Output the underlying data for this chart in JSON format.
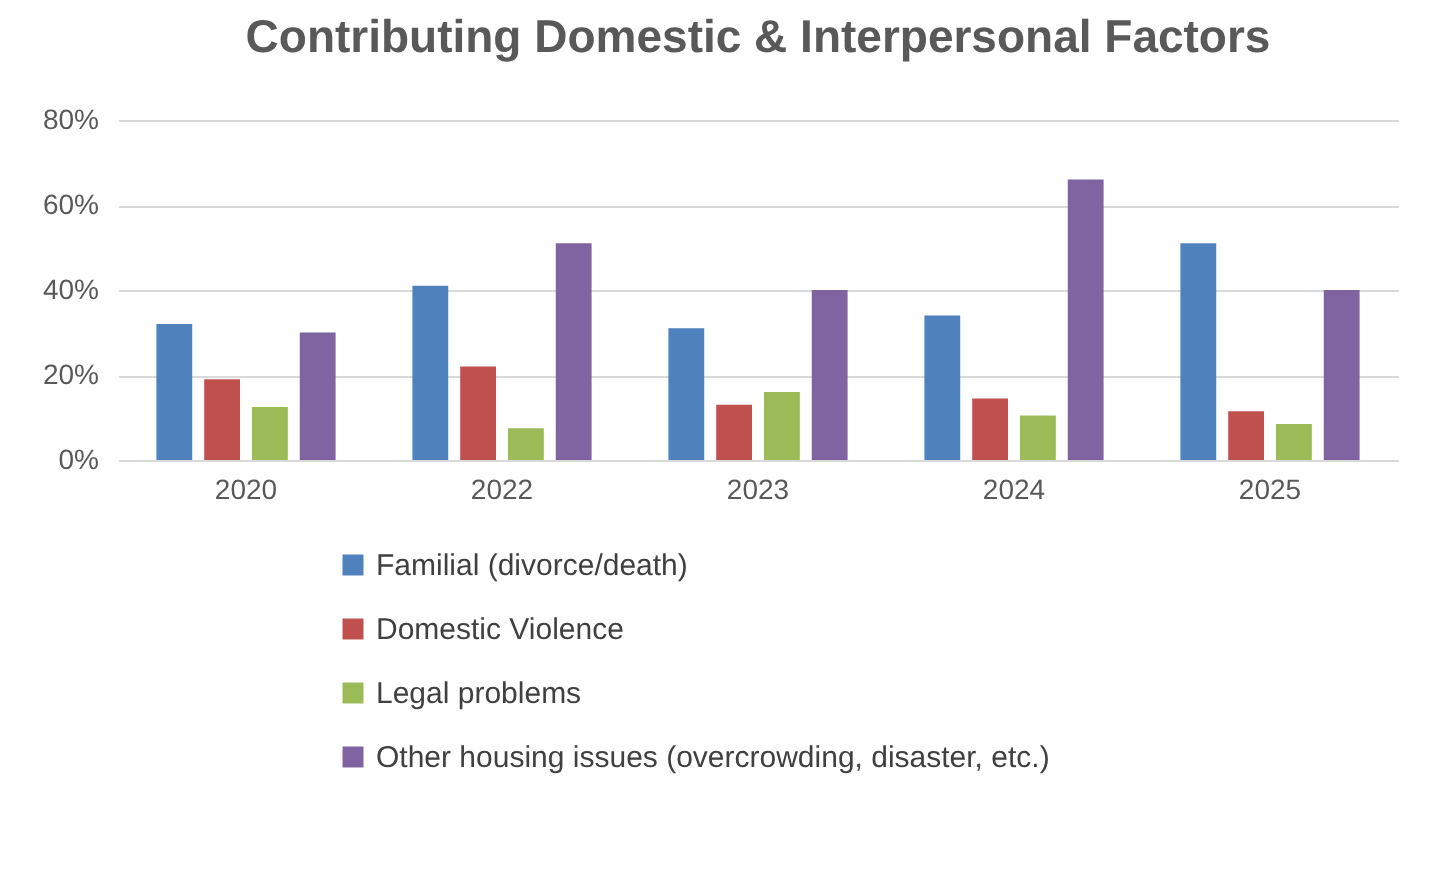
{
  "chart_data": {
    "type": "bar",
    "title": "Contributing Domestic & Interpersonal Factors",
    "categories": [
      "2020",
      "2022",
      "2023",
      "2024",
      "2025"
    ],
    "series": [
      {
        "name": "Familial (divorce/death)",
        "color": "#4f81bd",
        "values": [
          32,
          41,
          31,
          34,
          51
        ]
      },
      {
        "name": "Domestic Violence",
        "color": "#c0504d",
        "values": [
          19,
          22,
          13,
          14.5,
          11.5
        ]
      },
      {
        "name": "Legal problems",
        "color": "#9bbb59",
        "values": [
          12.5,
          7.5,
          16,
          10.5,
          8.5
        ]
      },
      {
        "name": "Other housing issues (overcrowding, disaster, etc.)",
        "color": "#8064a2",
        "values": [
          30,
          51,
          40,
          66,
          40
        ]
      }
    ],
    "ylim": [
      0,
      80
    ],
    "yticks": [
      {
        "value": 0,
        "label": "0%"
      },
      {
        "value": 20,
        "label": "20%"
      },
      {
        "value": 40,
        "label": "40%"
      },
      {
        "value": 60,
        "label": "60%"
      },
      {
        "value": 80,
        "label": "80%"
      }
    ],
    "grid": true,
    "legend": "bottom"
  }
}
